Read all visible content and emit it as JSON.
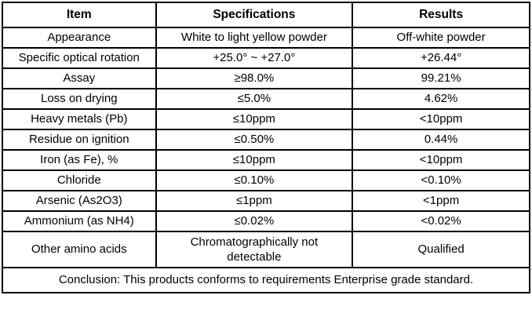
{
  "table": {
    "headers": [
      "Item",
      "Specifications",
      "Results"
    ],
    "rows": [
      {
        "item": "Appearance",
        "spec": "White to light yellow powder",
        "result": "Off-white powder"
      },
      {
        "item": "Specific optical rotation",
        "spec": "+25.0° ~ +27.0°",
        "result": "+26.44°"
      },
      {
        "item": "Assay",
        "spec": "≥98.0%",
        "result": "99.21%"
      },
      {
        "item": "Loss on drying",
        "spec": "≤5.0%",
        "result": "4.62%"
      },
      {
        "item": "Heavy metals (Pb)",
        "spec": "≤10ppm",
        "result": "<10ppm"
      },
      {
        "item": "Residue on ignition",
        "spec": "≤0.50%",
        "result": "0.44%"
      },
      {
        "item": "Iron (as Fe), %",
        "spec": "≤10ppm",
        "result": "<10ppm"
      },
      {
        "item": "Chloride",
        "spec": "≤0.10%",
        "result": "<0.10%"
      },
      {
        "item": "Arsenic (As2O3)",
        "spec": "≤1ppm",
        "result": "<1ppm"
      },
      {
        "item": "Ammonium (as NH4)",
        "spec": "≤0.02%",
        "result": "<0.02%"
      },
      {
        "item": "Other amino acids",
        "spec": "Chromatographically not detectable",
        "result": "Qualified"
      }
    ],
    "conclusion": "Conclusion: This products conforms to requirements Enterprise grade standard."
  }
}
